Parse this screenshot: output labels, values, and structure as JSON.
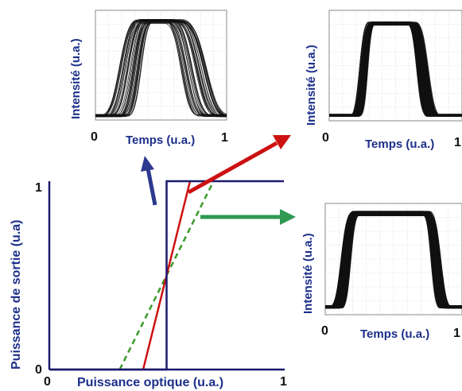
{
  "colors": {
    "navy": "#1a1a6e",
    "red": "#cc1111",
    "green": "#2e9a52",
    "blue_arrow": "#2b3a8f",
    "dashed": "#3a9a2a",
    "trace": "#111111",
    "grid": "#c8c8c8",
    "label_blue": "#1c2f8a"
  },
  "main_plot": {
    "ylabel": "Puissance de sortie (u.a)",
    "xlabel": "Puissance optique  (u.a.)",
    "x_min_tick": "0",
    "x_max_tick": "1",
    "y_min_tick": "0",
    "y_max_tick": "1"
  },
  "chart_data": [
    {
      "type": "line",
      "title": "",
      "xlabel": "Puissance optique  (u.a.)",
      "ylabel": "Puissance de sortie (u.a)",
      "xlim": [
        0,
        1
      ],
      "ylim": [
        0,
        1
      ],
      "series": [
        {
          "style": "step",
          "color": "#1a1a6e",
          "x": [
            0,
            0.5,
            0.5,
            1
          ],
          "y": [
            0,
            0,
            1,
            1
          ]
        },
        {
          "style": "steep-linear",
          "color": "#cc1111",
          "x": [
            0.4,
            0.6
          ],
          "y": [
            0,
            1
          ]
        },
        {
          "style": "dashed-linear",
          "color": "#3a9a2a",
          "x": [
            0.3,
            0.7
          ],
          "y": [
            0,
            1
          ]
        }
      ]
    }
  ],
  "insets": [
    {
      "ylabel": "Intensité (u.a.)",
      "xlabel": "Temps (u.a.)",
      "x0": "0",
      "x1": "1"
    },
    {
      "ylabel": "Intensité (u.a.)",
      "xlabel": "Temps (u.a.)",
      "x0": "0",
      "x1": "1"
    },
    {
      "ylabel": "Intensité (u.a.)",
      "xlabel": "Temps (u.a.)",
      "x0": "0",
      "x1": "1"
    }
  ]
}
